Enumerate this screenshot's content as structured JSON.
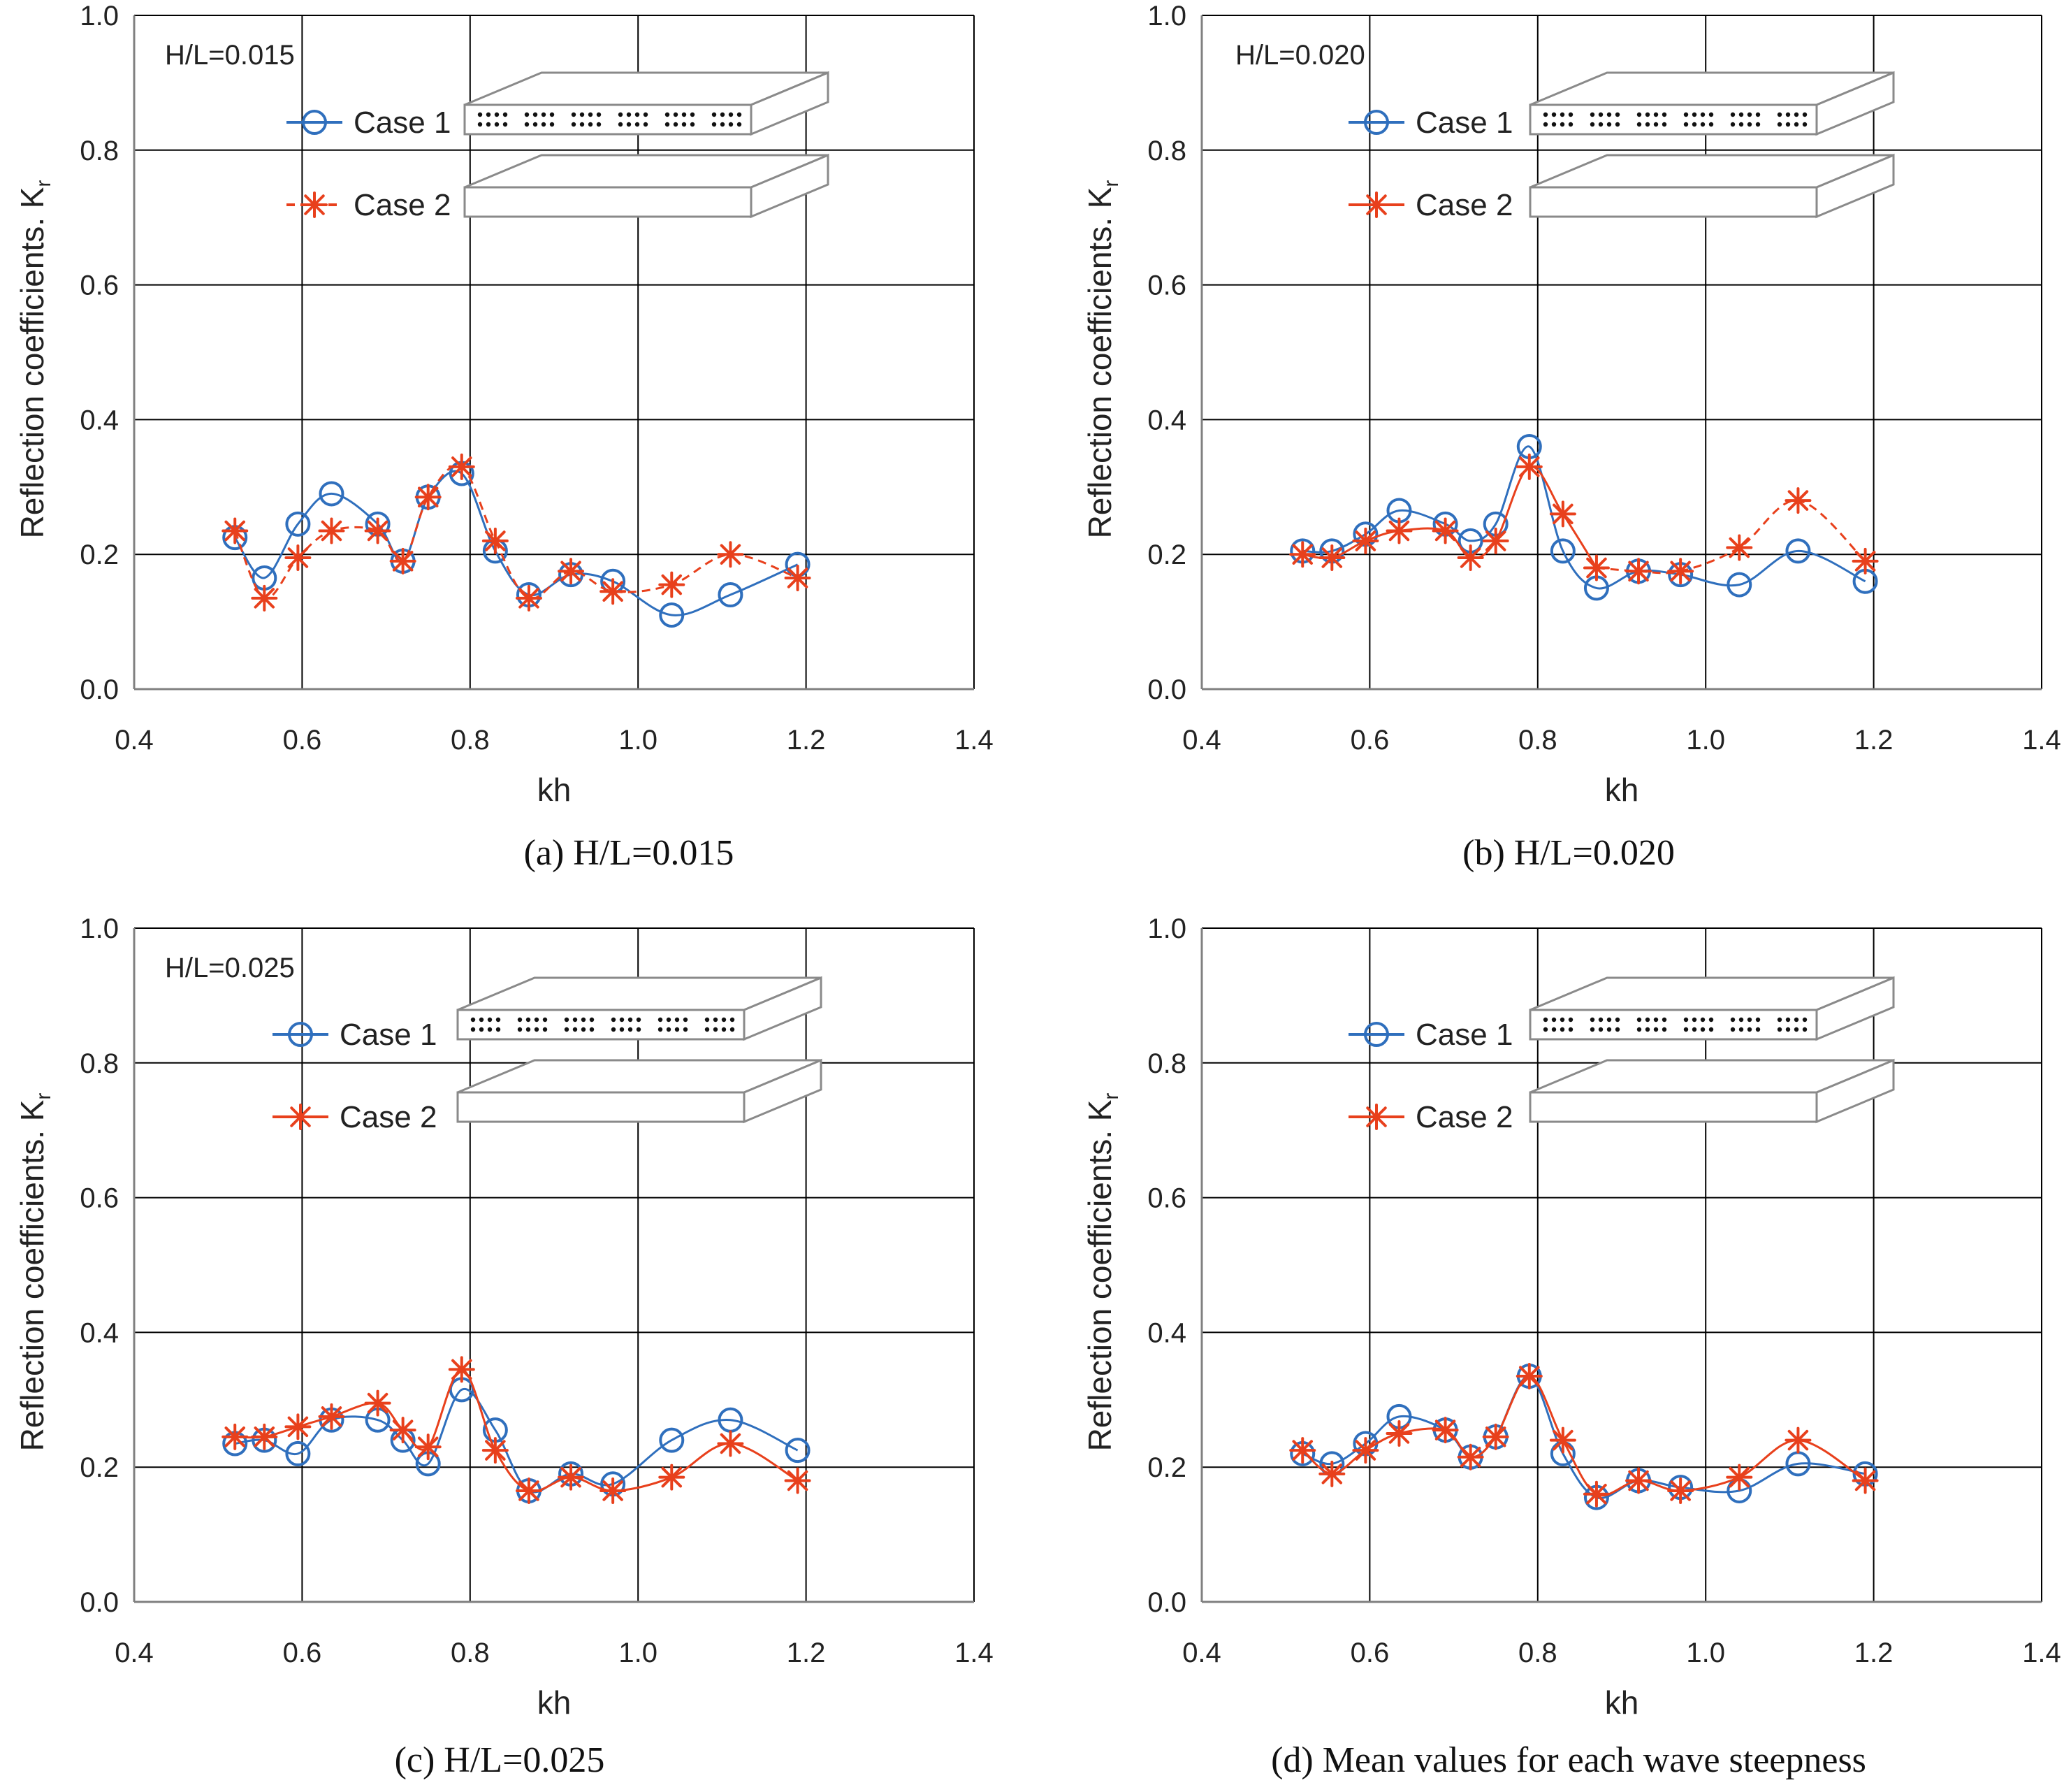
{
  "colors": {
    "case1": "#2f6fbd",
    "case2": "#e8401c",
    "grid": "#000000",
    "axis": "#808080",
    "text": "#222222"
  },
  "chart_data": [
    {
      "type": "line",
      "panel": "a",
      "annotation": "H/L=0.015",
      "caption": "(a)  H/L=0.015",
      "xlabel": "kh",
      "ylabel": "Reflection coefficients. K",
      "ylabel_sub": "r",
      "xlim": [
        0.4,
        1.4
      ],
      "ylim": [
        0.0,
        1.0
      ],
      "xticks": [
        "0.4",
        "0.6",
        "0.8",
        "1.0",
        "1.2",
        "1.4"
      ],
      "yticks": [
        "0.0",
        "0.2",
        "0.4",
        "0.6",
        "0.8",
        "1.0"
      ],
      "grid": true,
      "legend": "top-left",
      "series": [
        {
          "name": "Case 1",
          "marker": "circle",
          "style": "solid",
          "x": [
            0.52,
            0.555,
            0.595,
            0.635,
            0.69,
            0.72,
            0.75,
            0.79,
            0.83,
            0.87,
            0.92,
            0.97,
            1.04,
            1.11,
            1.19
          ],
          "y": [
            0.225,
            0.165,
            0.245,
            0.29,
            0.245,
            0.19,
            0.285,
            0.32,
            0.205,
            0.14,
            0.17,
            0.16,
            0.11,
            0.14,
            0.185
          ]
        },
        {
          "name": "Case 2",
          "marker": "asterisk",
          "style": "dashed",
          "x": [
            0.52,
            0.555,
            0.595,
            0.635,
            0.69,
            0.72,
            0.75,
            0.79,
            0.83,
            0.87,
            0.92,
            0.97,
            1.04,
            1.11,
            1.19
          ],
          "y": [
            0.235,
            0.135,
            0.195,
            0.235,
            0.235,
            0.19,
            0.285,
            0.33,
            0.22,
            0.135,
            0.175,
            0.145,
            0.155,
            0.2,
            0.165
          ]
        }
      ]
    },
    {
      "type": "line",
      "panel": "b",
      "annotation": "H/L=0.020",
      "caption": "(b)  H/L=0.020",
      "xlabel": "kh",
      "ylabel": "Reflection coefficients. K",
      "ylabel_sub": "r",
      "xlim": [
        0.4,
        1.4
      ],
      "ylim": [
        0.0,
        1.0
      ],
      "xticks": [
        "0.4",
        "0.6",
        "0.8",
        "1.0",
        "1.2",
        "1.4"
      ],
      "yticks": [
        "0.0",
        "0.2",
        "0.4",
        "0.6",
        "0.8",
        "1.0"
      ],
      "grid": true,
      "legend": "top-left",
      "series": [
        {
          "name": "Case 1",
          "marker": "circle",
          "style": "solid",
          "x": [
            0.52,
            0.555,
            0.595,
            0.635,
            0.69,
            0.72,
            0.75,
            0.79,
            0.83,
            0.87,
            0.92,
            0.97,
            1.04,
            1.11,
            1.19
          ],
          "y": [
            0.205,
            0.205,
            0.23,
            0.265,
            0.245,
            0.22,
            0.245,
            0.36,
            0.205,
            0.15,
            0.175,
            0.17,
            0.155,
            0.205,
            0.16
          ]
        },
        {
          "name": "Case 2",
          "marker": "asterisk",
          "style": "solid-then-dashed",
          "x": [
            0.52,
            0.555,
            0.595,
            0.635,
            0.69,
            0.72,
            0.75,
            0.79,
            0.83,
            0.87,
            0.92,
            0.97,
            1.04,
            1.11,
            1.19
          ],
          "y": [
            0.2,
            0.195,
            0.22,
            0.235,
            0.235,
            0.195,
            0.22,
            0.33,
            0.26,
            0.18,
            0.175,
            0.175,
            0.21,
            0.28,
            0.19
          ]
        }
      ]
    },
    {
      "type": "line",
      "panel": "c",
      "annotation": "H/L=0.025",
      "caption": "(c)  H/L=0.025",
      "xlabel": "kh",
      "ylabel": "Reflection coefficients. K",
      "ylabel_sub": "r",
      "xlim": [
        0.4,
        1.4
      ],
      "ylim": [
        0.0,
        1.0
      ],
      "xticks": [
        "0.4",
        "0.6",
        "0.8",
        "1.0",
        "1.2",
        "1.4"
      ],
      "yticks": [
        "0.0",
        "0.2",
        "0.4",
        "0.6",
        "0.8",
        "1.0"
      ],
      "grid": true,
      "legend": "top-left",
      "series": [
        {
          "name": "Case 1",
          "marker": "circle",
          "style": "solid",
          "x": [
            0.52,
            0.555,
            0.595,
            0.635,
            0.69,
            0.72,
            0.75,
            0.79,
            0.83,
            0.87,
            0.92,
            0.97,
            1.04,
            1.11,
            1.19
          ],
          "y": [
            0.235,
            0.24,
            0.22,
            0.27,
            0.27,
            0.24,
            0.205,
            0.315,
            0.255,
            0.165,
            0.19,
            0.175,
            0.24,
            0.27,
            0.225
          ]
        },
        {
          "name": "Case 2",
          "marker": "asterisk",
          "style": "solid",
          "x": [
            0.52,
            0.555,
            0.595,
            0.635,
            0.69,
            0.72,
            0.75,
            0.79,
            0.83,
            0.87,
            0.92,
            0.97,
            1.04,
            1.11,
            1.19
          ],
          "y": [
            0.245,
            0.245,
            0.26,
            0.275,
            0.295,
            0.255,
            0.23,
            0.345,
            0.225,
            0.165,
            0.185,
            0.165,
            0.185,
            0.235,
            0.18
          ]
        }
      ]
    },
    {
      "type": "line",
      "panel": "d",
      "annotation": "",
      "caption": "(d)  Mean values for each wave steepness",
      "xlabel": "kh",
      "ylabel": "Reflection coefficients. K",
      "ylabel_sub": "r",
      "xlim": [
        0.4,
        1.4
      ],
      "ylim": [
        0.0,
        1.0
      ],
      "xticks": [
        "0.4",
        "0.6",
        "0.8",
        "1.0",
        "1.2",
        "1.4"
      ],
      "yticks": [
        "0.0",
        "0.2",
        "0.4",
        "0.6",
        "0.8",
        "1.0"
      ],
      "grid": true,
      "legend": "top-left",
      "series": [
        {
          "name": "Case 1",
          "marker": "circle",
          "style": "solid",
          "x": [
            0.52,
            0.555,
            0.595,
            0.635,
            0.69,
            0.72,
            0.75,
            0.79,
            0.83,
            0.87,
            0.92,
            0.97,
            1.04,
            1.11,
            1.19
          ],
          "y": [
            0.22,
            0.205,
            0.235,
            0.275,
            0.255,
            0.215,
            0.245,
            0.335,
            0.22,
            0.155,
            0.18,
            0.17,
            0.165,
            0.205,
            0.19
          ]
        },
        {
          "name": "Case 2",
          "marker": "asterisk",
          "style": "solid",
          "x": [
            0.52,
            0.555,
            0.595,
            0.635,
            0.69,
            0.72,
            0.75,
            0.79,
            0.83,
            0.87,
            0.92,
            0.97,
            1.04,
            1.11,
            1.19
          ],
          "y": [
            0.225,
            0.19,
            0.225,
            0.25,
            0.255,
            0.215,
            0.245,
            0.335,
            0.24,
            0.16,
            0.18,
            0.165,
            0.185,
            0.24,
            0.18
          ]
        }
      ]
    }
  ]
}
